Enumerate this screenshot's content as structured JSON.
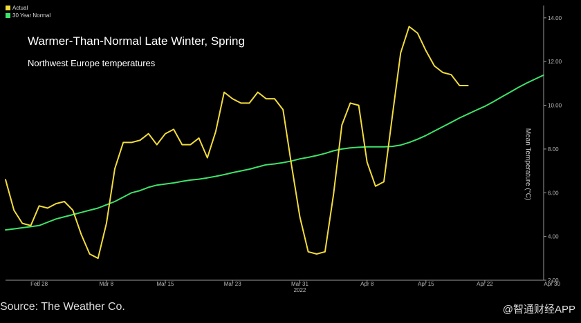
{
  "title": "Warmer-Than-Normal Late Winter, Spring",
  "subtitle": "Northwest Europe temperatures",
  "source": "Source: The Weather Co.",
  "watermark": "@智通财经APP",
  "colors": {
    "actual": "#f2dc3c",
    "normal": "#3ee36a",
    "background": "#000000",
    "axis": "#9a9a9a"
  },
  "chart_data": {
    "type": "line",
    "title": "Warmer-Than-Normal Late Winter, Spring",
    "subtitle": "Northwest Europe temperatures",
    "xlabel": "",
    "ylabel": "Mean Temperature (°C)",
    "ylim": [
      2.0,
      14.5
    ],
    "xlim": [
      55,
      119
    ],
    "y_ticks": [
      2.0,
      4.0,
      6.0,
      8.0,
      10.0,
      12.0,
      14.0
    ],
    "y_tick_labels": [
      "2.00",
      "4.00",
      "6.00",
      "8.00",
      "10.00",
      "12.00",
      "14.00"
    ],
    "x_ticks": [
      59,
      67,
      74,
      82,
      90,
      98,
      105,
      112,
      120
    ],
    "x_tick_labels": [
      "Feb 28",
      "Mar 8",
      "Mar 15",
      "Mar 23",
      "Mar 31",
      "Apr 8",
      "Apr 15",
      "Apr 22",
      "Apr 30"
    ],
    "x_secondary_label": "2022",
    "y_axis_position": "right",
    "legend_position": "top-left",
    "grid": false,
    "series": [
      {
        "name": "Actual",
        "color": "#f2dc3c",
        "x": [
          55,
          56,
          57,
          58,
          59,
          60,
          61,
          62,
          63,
          64,
          65,
          66,
          67,
          68,
          69,
          70,
          71,
          72,
          73,
          74,
          75,
          76,
          77,
          78,
          79,
          80,
          81,
          82,
          83,
          84,
          85,
          86,
          87,
          88,
          89,
          90,
          91,
          92,
          93,
          94,
          95,
          96,
          97,
          98,
          99,
          100,
          101,
          102,
          103,
          104,
          105,
          106,
          107,
          108,
          109,
          110
        ],
        "values": [
          6.6,
          5.2,
          4.6,
          4.5,
          5.4,
          5.3,
          5.5,
          5.6,
          5.2,
          4.1,
          3.2,
          3.0,
          4.6,
          7.1,
          8.3,
          8.3,
          8.4,
          8.7,
          8.2,
          8.7,
          8.9,
          8.2,
          8.2,
          8.5,
          7.6,
          8.8,
          10.6,
          10.3,
          10.1,
          10.1,
          10.6,
          10.3,
          10.3,
          9.8,
          7.3,
          4.9,
          3.3,
          3.2,
          3.3,
          5.9,
          9.1,
          10.1,
          10.0,
          7.4,
          6.3,
          6.5,
          9.5,
          12.4,
          13.6,
          13.3,
          12.5,
          11.8,
          11.5,
          11.4,
          10.9,
          10.9
        ]
      },
      {
        "name": "30 Year Normal",
        "color": "#3ee36a",
        "x": [
          55,
          56,
          57,
          58,
          59,
          60,
          61,
          62,
          63,
          64,
          65,
          66,
          67,
          68,
          69,
          70,
          71,
          72,
          73,
          74,
          75,
          76,
          77,
          78,
          79,
          80,
          81,
          82,
          83,
          84,
          85,
          86,
          87,
          88,
          89,
          90,
          91,
          92,
          93,
          94,
          95,
          96,
          97,
          98,
          99,
          100,
          101,
          102,
          103,
          104,
          105,
          106,
          107,
          108,
          109,
          110,
          111,
          112,
          113,
          114,
          115,
          116,
          117,
          118,
          119
        ],
        "values": [
          4.3,
          4.35,
          4.4,
          4.45,
          4.5,
          4.65,
          4.8,
          4.9,
          5.0,
          5.1,
          5.2,
          5.3,
          5.45,
          5.6,
          5.8,
          6.0,
          6.1,
          6.25,
          6.35,
          6.4,
          6.45,
          6.52,
          6.58,
          6.62,
          6.68,
          6.75,
          6.83,
          6.92,
          7.0,
          7.08,
          7.18,
          7.28,
          7.32,
          7.38,
          7.45,
          7.55,
          7.62,
          7.7,
          7.8,
          7.92,
          8.0,
          8.05,
          8.08,
          8.1,
          8.1,
          8.1,
          8.12,
          8.18,
          8.3,
          8.45,
          8.62,
          8.82,
          9.02,
          9.22,
          9.42,
          9.6,
          9.78,
          9.95,
          10.16,
          10.38,
          10.6,
          10.82,
          11.02,
          11.2,
          11.38
        ]
      }
    ],
    "series_tail_note": ""
  }
}
